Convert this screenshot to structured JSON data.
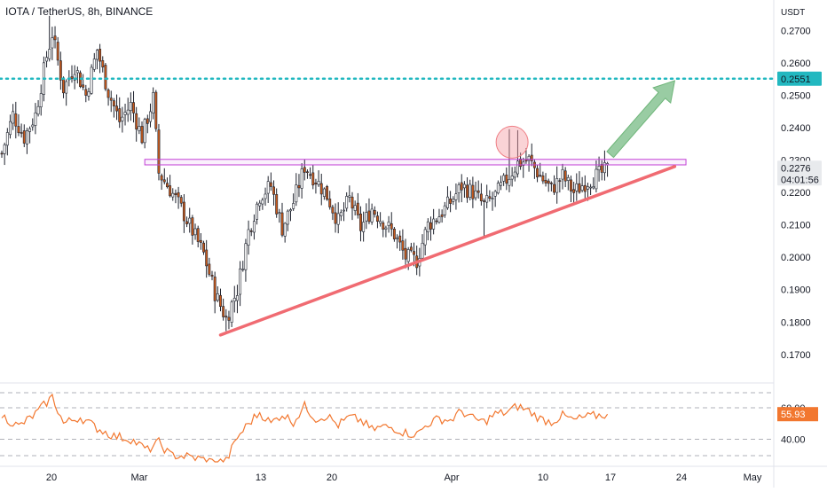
{
  "header": {
    "title": "IOTA / TetherUS, 8h, BINANCE"
  },
  "price_axis": {
    "unit": "USDT",
    "ticks": [
      "0.2700",
      "0.2600",
      "0.2500",
      "0.2400",
      "0.2300",
      "0.2200",
      "0.2100",
      "0.2000",
      "0.1900",
      "0.1800",
      "0.1700"
    ]
  },
  "time_axis": {
    "labels": [
      "20",
      "Mar",
      "13",
      "20",
      "Apr",
      "10",
      "17",
      "24",
      "May"
    ]
  },
  "indicator": {
    "ticks": [
      "60.00",
      "40.00"
    ],
    "current_label": "55.93"
  },
  "markers": {
    "resistance_level_label": "0.2551",
    "last_price_label": "0.2276",
    "countdown_label": "04:01:56"
  },
  "colors": {
    "up_candle": "#ffffff",
    "down_candle": "#c85a1c",
    "candle_outline": "#1e222d",
    "trendline": "#f06b72",
    "dotted_level": "#22b8c0",
    "box_border": "#c23fd6",
    "rsi_line": "#f2772f",
    "arrow": "#8fc79a",
    "circle": "#f59ea3"
  },
  "chart_data": {
    "type": "candlestick",
    "symbol": "IOTA / TetherUS",
    "interval": "8h",
    "exchange": "BINANCE",
    "ylim": [
      0.165,
      0.274
    ],
    "price_ticks": [
      0.27,
      0.26,
      0.25,
      0.24,
      0.23,
      0.22,
      0.21,
      0.2,
      0.19,
      0.18,
      0.17
    ],
    "x_ticks": [
      "20",
      "Mar",
      "13",
      "20",
      "Apr",
      "10",
      "17",
      "24",
      "May"
    ],
    "anchors": [
      {
        "x": 0,
        "p": 0.232
      },
      {
        "x": 4,
        "p": 0.244
      },
      {
        "x": 8,
        "p": 0.237
      },
      {
        "x": 12,
        "p": 0.244
      },
      {
        "x": 16,
        "p": 0.262
      },
      {
        "x": 18,
        "p": 0.269
      },
      {
        "x": 22,
        "p": 0.252
      },
      {
        "x": 26,
        "p": 0.259
      },
      {
        "x": 30,
        "p": 0.25
      },
      {
        "x": 34,
        "p": 0.264
      },
      {
        "x": 38,
        "p": 0.251
      },
      {
        "x": 42,
        "p": 0.242
      },
      {
        "x": 46,
        "p": 0.247
      },
      {
        "x": 50,
        "p": 0.237
      },
      {
        "x": 54,
        "p": 0.249
      },
      {
        "x": 56,
        "p": 0.226
      },
      {
        "x": 60,
        "p": 0.221
      },
      {
        "x": 64,
        "p": 0.215
      },
      {
        "x": 68,
        "p": 0.208
      },
      {
        "x": 72,
        "p": 0.201
      },
      {
        "x": 76,
        "p": 0.189
      },
      {
        "x": 80,
        "p": 0.181
      },
      {
        "x": 84,
        "p": 0.19
      },
      {
        "x": 88,
        "p": 0.208
      },
      {
        "x": 92,
        "p": 0.219
      },
      {
        "x": 96,
        "p": 0.222
      },
      {
        "x": 100,
        "p": 0.209
      },
      {
        "x": 104,
        "p": 0.217
      },
      {
        "x": 108,
        "p": 0.228
      },
      {
        "x": 112,
        "p": 0.224
      },
      {
        "x": 116,
        "p": 0.219
      },
      {
        "x": 120,
        "p": 0.211
      },
      {
        "x": 124,
        "p": 0.218
      },
      {
        "x": 128,
        "p": 0.209
      },
      {
        "x": 132,
        "p": 0.215
      },
      {
        "x": 136,
        "p": 0.211
      },
      {
        "x": 140,
        "p": 0.207
      },
      {
        "x": 144,
        "p": 0.2
      },
      {
        "x": 148,
        "p": 0.199
      },
      {
        "x": 152,
        "p": 0.21
      },
      {
        "x": 156,
        "p": 0.213
      },
      {
        "x": 160,
        "p": 0.217
      },
      {
        "x": 164,
        "p": 0.222
      },
      {
        "x": 168,
        "p": 0.22
      },
      {
        "x": 172,
        "p": 0.216
      },
      {
        "x": 176,
        "p": 0.219
      },
      {
        "x": 180,
        "p": 0.224
      },
      {
        "x": 184,
        "p": 0.229
      },
      {
        "x": 188,
        "p": 0.23
      },
      {
        "x": 192,
        "p": 0.225
      },
      {
        "x": 196,
        "p": 0.221
      },
      {
        "x": 200,
        "p": 0.225
      },
      {
        "x": 204,
        "p": 0.22
      },
      {
        "x": 208,
        "p": 0.223
      },
      {
        "x": 212,
        "p": 0.225
      },
      {
        "x": 216,
        "p": 0.227
      }
    ],
    "rsi": {
      "ylim": [
        20,
        70
      ],
      "ticks": [
        60,
        40
      ],
      "current": 55.93,
      "anchors": [
        {
          "x": 0,
          "v": 55
        },
        {
          "x": 6,
          "v": 48
        },
        {
          "x": 12,
          "v": 56
        },
        {
          "x": 18,
          "v": 67
        },
        {
          "x": 22,
          "v": 50
        },
        {
          "x": 28,
          "v": 54
        },
        {
          "x": 34,
          "v": 47
        },
        {
          "x": 40,
          "v": 42
        },
        {
          "x": 46,
          "v": 40
        },
        {
          "x": 52,
          "v": 33
        },
        {
          "x": 56,
          "v": 38
        },
        {
          "x": 60,
          "v": 30
        },
        {
          "x": 66,
          "v": 29
        },
        {
          "x": 72,
          "v": 27
        },
        {
          "x": 76,
          "v": 25
        },
        {
          "x": 80,
          "v": 26
        },
        {
          "x": 84,
          "v": 41
        },
        {
          "x": 88,
          "v": 50
        },
        {
          "x": 92,
          "v": 57
        },
        {
          "x": 96,
          "v": 50
        },
        {
          "x": 100,
          "v": 56
        },
        {
          "x": 104,
          "v": 51
        },
        {
          "x": 108,
          "v": 61
        },
        {
          "x": 112,
          "v": 53
        },
        {
          "x": 116,
          "v": 55
        },
        {
          "x": 120,
          "v": 49
        },
        {
          "x": 124,
          "v": 54
        },
        {
          "x": 128,
          "v": 52
        },
        {
          "x": 132,
          "v": 46
        },
        {
          "x": 136,
          "v": 48
        },
        {
          "x": 140,
          "v": 47
        },
        {
          "x": 144,
          "v": 44
        },
        {
          "x": 148,
          "v": 43
        },
        {
          "x": 152,
          "v": 50
        },
        {
          "x": 156,
          "v": 53
        },
        {
          "x": 160,
          "v": 52
        },
        {
          "x": 164,
          "v": 58
        },
        {
          "x": 168,
          "v": 53
        },
        {
          "x": 172,
          "v": 51
        },
        {
          "x": 176,
          "v": 56
        },
        {
          "x": 180,
          "v": 57
        },
        {
          "x": 184,
          "v": 61
        },
        {
          "x": 188,
          "v": 58
        },
        {
          "x": 192,
          "v": 53
        },
        {
          "x": 196,
          "v": 51
        },
        {
          "x": 200,
          "v": 55
        },
        {
          "x": 204,
          "v": 52
        },
        {
          "x": 208,
          "v": 54
        },
        {
          "x": 212,
          "v": 55
        },
        {
          "x": 216,
          "v": 55.93
        }
      ]
    },
    "annotations": {
      "resistance_level": 0.2551,
      "last_price": 0.2276,
      "ascending_trendline": [
        {
          "x": 78,
          "p": 0.176
        },
        {
          "x": 240,
          "p": 0.228
        }
      ],
      "horizontal_zone": {
        "x_start": 51,
        "x_end": 244,
        "p_low": 0.2285,
        "p_high": 0.2302
      },
      "highlighted_peak_x": 182,
      "breakout_arrow_target": {
        "x": 240,
        "p": 0.2545
      }
    }
  }
}
